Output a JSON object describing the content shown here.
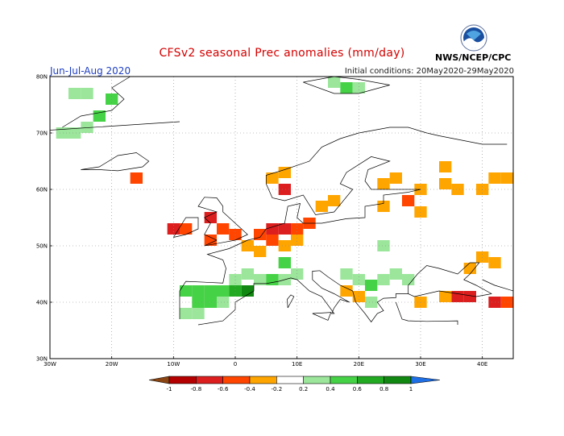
{
  "title": "CFSv2 seasonal Prec anomalies (mm/day)",
  "season": "Jun-Jul-Aug 2020",
  "initial_conditions": "Initial conditions: 20May2020-29May2020",
  "agency": "NWS/NCEP/CPC",
  "logo_icon": "noaa-logo-icon",
  "lat_labels": [
    "80N",
    "70N",
    "60N",
    "50N",
    "40N",
    "30N"
  ],
  "lon_labels": [
    "30W",
    "20W",
    "10W",
    "0",
    "10E",
    "20E",
    "30E",
    "40E"
  ],
  "legend": {
    "ticks": [
      "-1",
      "-0.8",
      "-0.6",
      "-0.4",
      "-0.2",
      "0.2",
      "0.4",
      "0.6",
      "0.8",
      "1"
    ],
    "colors": [
      "#8b4513",
      "#b40000",
      "#dc1e1e",
      "#ff4500",
      "#ffa500",
      "#ffffff",
      "#9be69b",
      "#46d246",
      "#22aa22",
      "#118811",
      "#1e6ee6"
    ]
  },
  "anomaly_cells": [
    {
      "lon": -28,
      "lat": 70,
      "v": 0.3
    },
    {
      "lon": -26,
      "lat": 70,
      "v": 0.3
    },
    {
      "lon": -24,
      "lat": 71,
      "v": 0.3
    },
    {
      "lon": -22,
      "lat": 73,
      "v": 0.5
    },
    {
      "lon": -24,
      "lat": 77,
      "v": 0.3
    },
    {
      "lon": -26,
      "lat": 77,
      "v": 0.3
    },
    {
      "lon": -20,
      "lat": 76,
      "v": 0.5
    },
    {
      "lon": -16,
      "lat": 62,
      "v": -0.5
    },
    {
      "lon": -10,
      "lat": 53,
      "v": -0.6
    },
    {
      "lon": -8,
      "lat": 53,
      "v": -0.4
    },
    {
      "lon": -4,
      "lat": 55,
      "v": -0.6
    },
    {
      "lon": -2,
      "lat": 53,
      "v": -0.4
    },
    {
      "lon": 0,
      "lat": 52,
      "v": -0.4
    },
    {
      "lon": -4,
      "lat": 51,
      "v": -0.5
    },
    {
      "lon": 4,
      "lat": 52,
      "v": -0.5
    },
    {
      "lon": 6,
      "lat": 53,
      "v": -0.7
    },
    {
      "lon": 8,
      "lat": 53,
      "v": -0.6
    },
    {
      "lon": 10,
      "lat": 53,
      "v": -0.5
    },
    {
      "lon": 12,
      "lat": 54,
      "v": -0.4
    },
    {
      "lon": 6,
      "lat": 51,
      "v": -0.4
    },
    {
      "lon": 2,
      "lat": 50,
      "v": -0.3
    },
    {
      "lon": 4,
      "lat": 49,
      "v": -0.3
    },
    {
      "lon": 8,
      "lat": 50,
      "v": -0.3
    },
    {
      "lon": 10,
      "lat": 51,
      "v": -0.3
    },
    {
      "lon": 14,
      "lat": 57,
      "v": -0.3
    },
    {
      "lon": 16,
      "lat": 58,
      "v": -0.3
    },
    {
      "lon": 6,
      "lat": 62,
      "v": -0.3
    },
    {
      "lon": 8,
      "lat": 63,
      "v": -0.3
    },
    {
      "lon": 8,
      "lat": 60,
      "v": -0.6
    },
    {
      "lon": 24,
      "lat": 61,
      "v": -0.3
    },
    {
      "lon": 26,
      "lat": 62,
      "v": -0.3
    },
    {
      "lon": 30,
      "lat": 60,
      "v": -0.3
    },
    {
      "lon": 28,
      "lat": 58,
      "v": -0.4
    },
    {
      "lon": 24,
      "lat": 57,
      "v": -0.3
    },
    {
      "lon": 30,
      "lat": 56,
      "v": -0.3
    },
    {
      "lon": 34,
      "lat": 61,
      "v": -0.3
    },
    {
      "lon": 36,
      "lat": 60,
      "v": -0.3
    },
    {
      "lon": 40,
      "lat": 60,
      "v": -0.3
    },
    {
      "lon": 42,
      "lat": 62,
      "v": -0.3
    },
    {
      "lon": 44,
      "lat": 62,
      "v": -0.3
    },
    {
      "lon": 34,
      "lat": 64,
      "v": -0.3
    },
    {
      "lon": 38,
      "lat": 46,
      "v": -0.3
    },
    {
      "lon": 40,
      "lat": 48,
      "v": -0.3
    },
    {
      "lon": 42,
      "lat": 47,
      "v": -0.3
    },
    {
      "lon": 36,
      "lat": 41,
      "v": -0.6
    },
    {
      "lon": 38,
      "lat": 41,
      "v": -0.6
    },
    {
      "lon": 42,
      "lat": 40,
      "v": -0.6
    },
    {
      "lon": 44,
      "lat": 40,
      "v": -0.5
    },
    {
      "lon": 30,
      "lat": 40,
      "v": -0.3
    },
    {
      "lon": 34,
      "lat": 41,
      "v": -0.3
    },
    {
      "lon": 18,
      "lat": 42,
      "v": -0.3
    },
    {
      "lon": 20,
      "lat": 41,
      "v": -0.3
    },
    {
      "lon": -8,
      "lat": 42,
      "v": 0.5
    },
    {
      "lon": -6,
      "lat": 42,
      "v": 0.6
    },
    {
      "lon": -4,
      "lat": 42,
      "v": 0.6
    },
    {
      "lon": -2,
      "lat": 42,
      "v": 0.6
    },
    {
      "lon": 0,
      "lat": 42,
      "v": 0.7
    },
    {
      "lon": -6,
      "lat": 40,
      "v": 0.5
    },
    {
      "lon": -4,
      "lat": 40,
      "v": 0.5
    },
    {
      "lon": -2,
      "lat": 40,
      "v": 0.4
    },
    {
      "lon": -8,
      "lat": 38,
      "v": 0.4
    },
    {
      "lon": -6,
      "lat": 38,
      "v": 0.4
    },
    {
      "lon": 2,
      "lat": 42,
      "v": 1.0
    },
    {
      "lon": 4,
      "lat": 44,
      "v": 0.4
    },
    {
      "lon": 6,
      "lat": 44,
      "v": 0.5
    },
    {
      "lon": 8,
      "lat": 44,
      "v": 0.4
    },
    {
      "lon": 10,
      "lat": 45,
      "v": 0.3
    },
    {
      "lon": 8,
      "lat": 47,
      "v": 0.5
    },
    {
      "lon": 0,
      "lat": 44,
      "v": 0.3
    },
    {
      "lon": 2,
      "lat": 45,
      "v": 0.3
    },
    {
      "lon": 20,
      "lat": 44,
      "v": 0.4
    },
    {
      "lon": 22,
      "lat": 43,
      "v": 0.5
    },
    {
      "lon": 24,
      "lat": 44,
      "v": 0.3
    },
    {
      "lon": 26,
      "lat": 45,
      "v": 0.3
    },
    {
      "lon": 28,
      "lat": 44,
      "v": 0.3
    },
    {
      "lon": 22,
      "lat": 40,
      "v": 0.3
    },
    {
      "lon": 24,
      "lat": 50,
      "v": 0.3
    },
    {
      "lon": 18,
      "lat": 45,
      "v": 0.4
    },
    {
      "lon": 18,
      "lat": 78,
      "v": 0.5
    },
    {
      "lon": 20,
      "lat": 78,
      "v": 0.4
    },
    {
      "lon": 16,
      "lat": 79,
      "v": 0.3
    }
  ]
}
